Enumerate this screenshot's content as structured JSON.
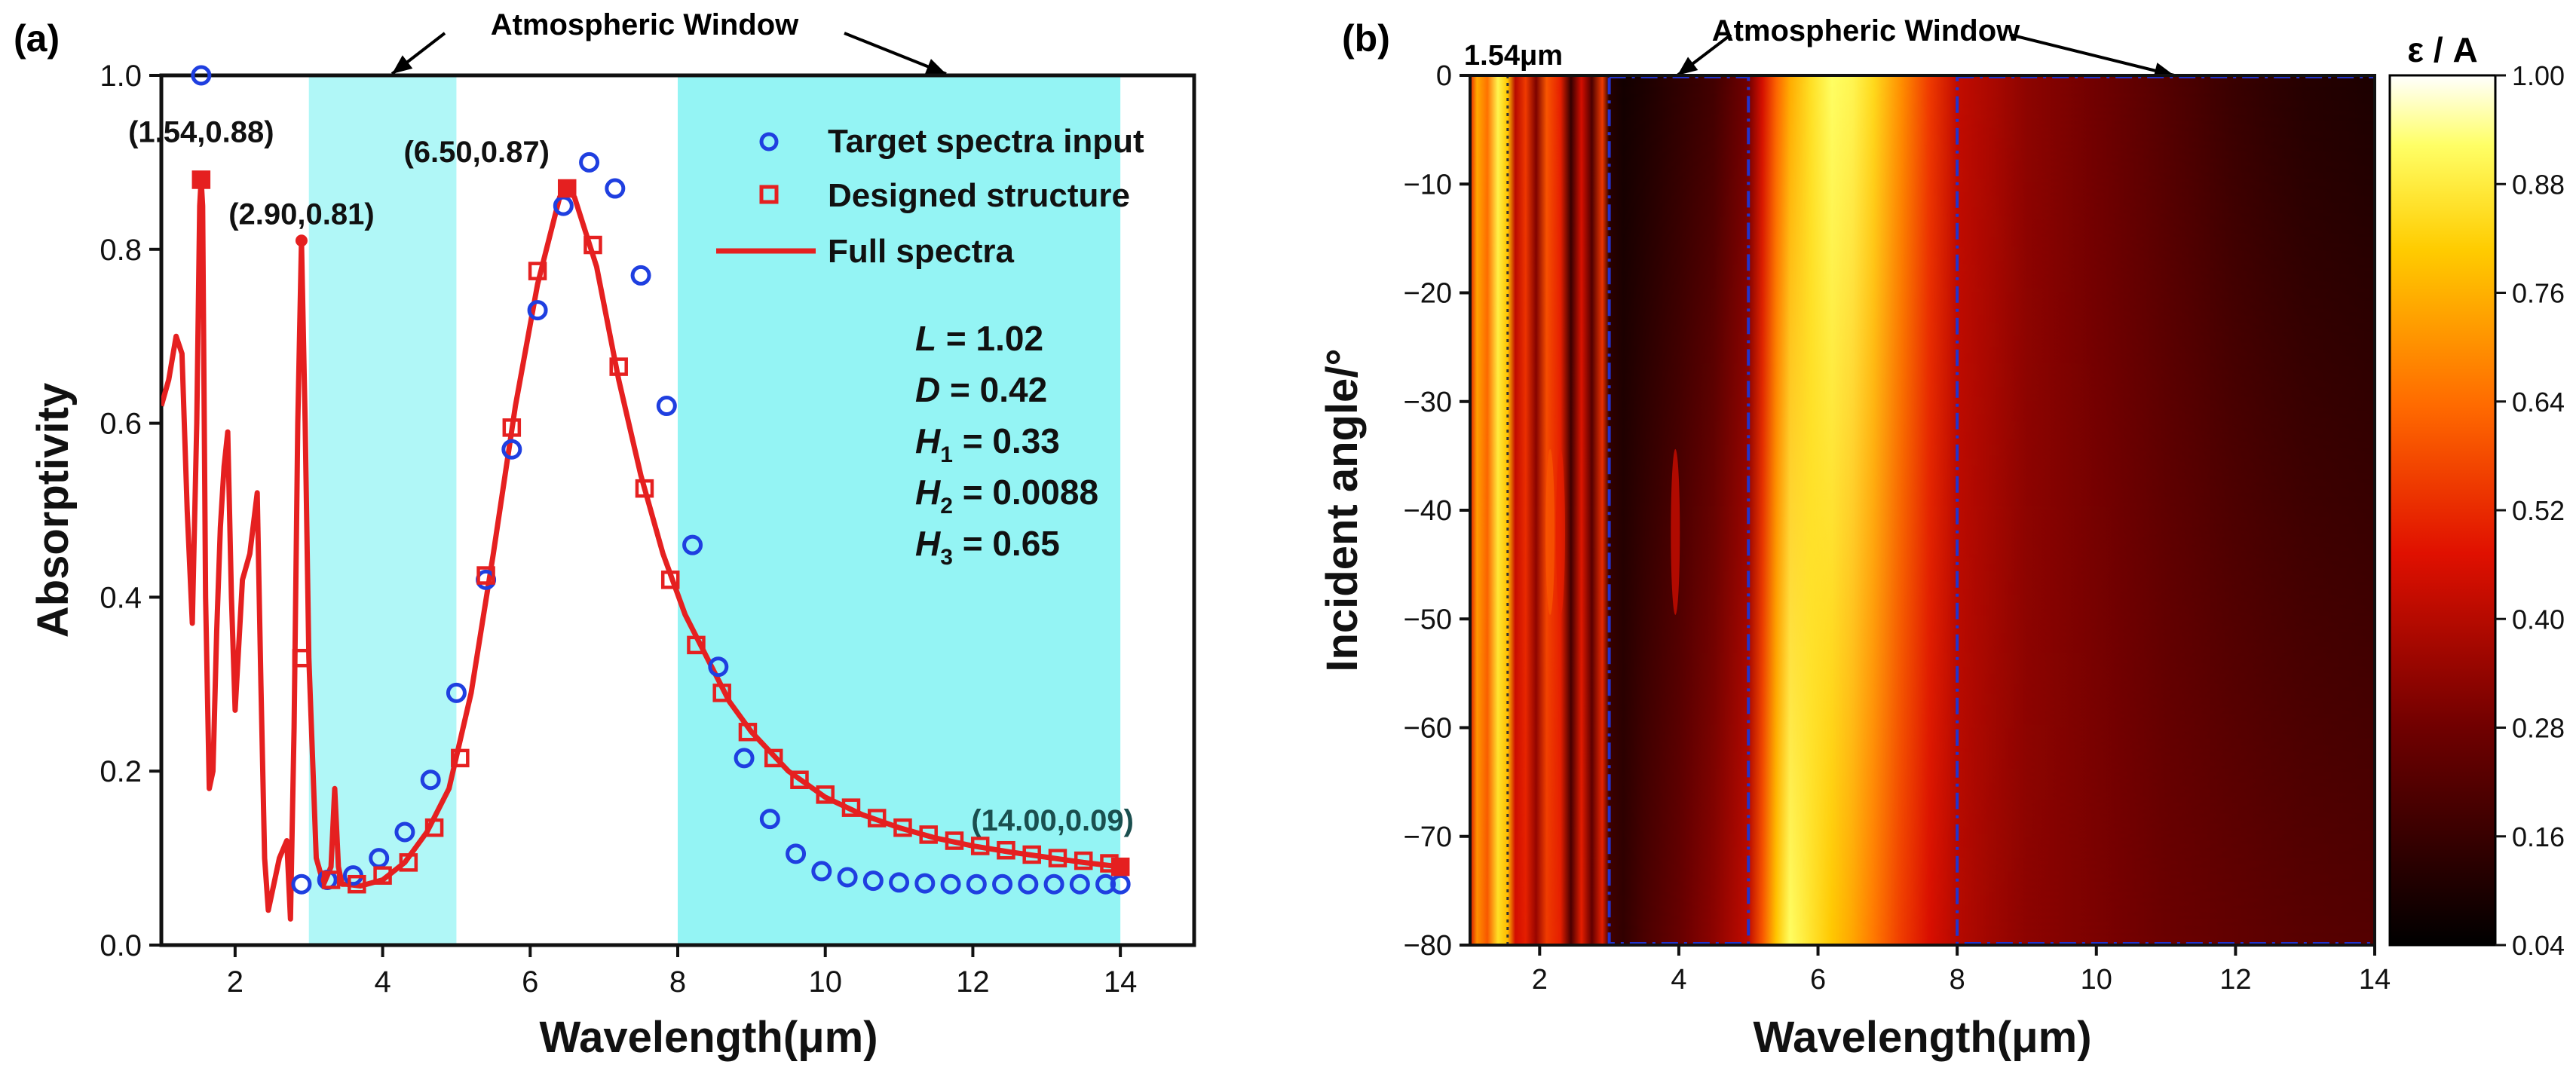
{
  "chart_data": [
    {
      "type": "line",
      "panel_label": "(a)",
      "title": "",
      "xlabel": "Wavelength(μm)",
      "ylabel": "Absorptivity",
      "xlim": [
        1,
        15
      ],
      "ylim": [
        0,
        1.0
      ],
      "xticks": [
        2,
        4,
        6,
        8,
        10,
        12,
        14
      ],
      "yticks": [
        0.0,
        0.2,
        0.4,
        0.6,
        0.8,
        1.0
      ],
      "shaded_regions": [
        [
          3,
          5
        ],
        [
          8,
          14
        ]
      ],
      "shade_color": "#8ef3f3",
      "atm_window_label": "Atmospheric Window",
      "legend": {
        "position": "top-right",
        "target": "Target spectra input",
        "designed": "Designed structure",
        "full": "Full spectra"
      },
      "params": [
        {
          "name": "L",
          "sub": "",
          "value": "= 1.02"
        },
        {
          "name": "D",
          "sub": "",
          "value": "= 0.42"
        },
        {
          "name": "H",
          "sub": "1",
          "value": "= 0.33"
        },
        {
          "name": "H",
          "sub": "2",
          "value": "= 0.0088"
        },
        {
          "name": "H",
          "sub": "3",
          "value": "= 0.65"
        }
      ],
      "annotations": [
        {
          "text": "(1.54,0.88)",
          "x": 1.54,
          "y": 0.88,
          "color": "#111111"
        },
        {
          "text": "(2.90,0.81)",
          "x": 2.9,
          "y": 0.81,
          "color": "#111111"
        },
        {
          "text": "(6.50,0.87)",
          "x": 6.5,
          "y": 0.87,
          "color": "#111111"
        },
        {
          "text": "(14.00,0.09)",
          "x": 14.0,
          "y": 0.09,
          "color": "#1a4f4f"
        }
      ],
      "series": [
        {
          "name": "Target spectra input",
          "marker": "circle",
          "x": [
            1.54,
            2.9,
            3.25,
            3.6,
            3.95,
            4.3,
            4.65,
            5.0,
            5.4,
            5.75,
            6.1,
            6.45,
            6.8,
            7.15,
            7.5,
            7.85,
            8.2,
            8.55,
            8.9,
            9.25,
            9.6,
            9.95,
            10.3,
            10.65,
            11.0,
            11.35,
            11.7,
            12.05,
            12.4,
            12.75,
            13.1,
            13.45,
            13.8,
            14.0
          ],
          "y": [
            1.0,
            0.07,
            0.075,
            0.08,
            0.1,
            0.13,
            0.19,
            0.29,
            0.42,
            0.57,
            0.73,
            0.85,
            0.9,
            0.87,
            0.77,
            0.62,
            0.46,
            0.32,
            0.215,
            0.145,
            0.105,
            0.085,
            0.078,
            0.074,
            0.072,
            0.071,
            0.07,
            0.07,
            0.07,
            0.07,
            0.07,
            0.07,
            0.07,
            0.07
          ]
        },
        {
          "name": "Designed structure",
          "marker": "square",
          "x": [
            1.54,
            2.9,
            3.3,
            3.65,
            4.0,
            4.35,
            4.7,
            5.05,
            5.4,
            5.75,
            6.1,
            6.5,
            6.85,
            7.2,
            7.55,
            7.9,
            8.25,
            8.6,
            8.95,
            9.3,
            9.65,
            10.0,
            10.35,
            10.7,
            11.05,
            11.4,
            11.75,
            12.1,
            12.45,
            12.8,
            13.15,
            13.5,
            13.85,
            14.0
          ],
          "y": [
            0.88,
            0.33,
            0.075,
            0.07,
            0.08,
            0.095,
            0.135,
            0.215,
            0.425,
            0.595,
            0.775,
            0.87,
            0.805,
            0.665,
            0.525,
            0.42,
            0.345,
            0.29,
            0.245,
            0.215,
            0.19,
            0.173,
            0.158,
            0.146,
            0.135,
            0.127,
            0.12,
            0.114,
            0.109,
            0.104,
            0.1,
            0.097,
            0.094,
            0.09
          ]
        },
        {
          "name": "Full spectra",
          "marker": "none",
          "x": [
            1.0,
            1.1,
            1.2,
            1.28,
            1.35,
            1.42,
            1.48,
            1.52,
            1.54,
            1.56,
            1.6,
            1.65,
            1.7,
            1.75,
            1.8,
            1.85,
            1.9,
            1.95,
            2.0,
            2.1,
            2.2,
            2.3,
            2.35,
            2.4,
            2.45,
            2.5,
            2.6,
            2.7,
            2.75,
            2.8,
            2.85,
            2.9,
            2.95,
            3.0,
            3.1,
            3.2,
            3.3,
            3.35,
            3.4,
            3.45,
            3.5,
            3.7,
            4.0,
            4.3,
            4.6,
            4.9,
            5.2,
            5.5,
            5.8,
            6.1,
            6.4,
            6.5,
            6.6,
            6.9,
            7.2,
            7.5,
            7.8,
            8.1,
            8.4,
            8.7,
            9.0,
            9.5,
            10.0,
            10.5,
            11.0,
            11.5,
            12.0,
            12.5,
            13.0,
            13.5,
            14.0
          ],
          "y": [
            0.62,
            0.65,
            0.7,
            0.68,
            0.5,
            0.37,
            0.6,
            0.85,
            0.88,
            0.85,
            0.4,
            0.18,
            0.2,
            0.36,
            0.48,
            0.55,
            0.59,
            0.4,
            0.27,
            0.42,
            0.45,
            0.52,
            0.3,
            0.1,
            0.04,
            0.06,
            0.1,
            0.12,
            0.03,
            0.25,
            0.6,
            0.81,
            0.6,
            0.33,
            0.1,
            0.07,
            0.09,
            0.18,
            0.09,
            0.07,
            0.07,
            0.068,
            0.075,
            0.095,
            0.13,
            0.18,
            0.29,
            0.45,
            0.62,
            0.76,
            0.86,
            0.87,
            0.86,
            0.78,
            0.65,
            0.54,
            0.45,
            0.38,
            0.33,
            0.28,
            0.245,
            0.2,
            0.17,
            0.15,
            0.135,
            0.123,
            0.114,
            0.107,
            0.101,
            0.095,
            0.09
          ]
        }
      ]
    },
    {
      "type": "heatmap",
      "panel_label": "(b)",
      "xlabel": "Wavelength(μm)",
      "ylabel": "Incident angle/°",
      "xlim": [
        1,
        14
      ],
      "ylim": [
        -80,
        0
      ],
      "xticks": [
        2,
        4,
        6,
        8,
        10,
        12,
        14
      ],
      "yticks": [
        0,
        -10,
        -20,
        -30,
        -40,
        -50,
        -60,
        -70,
        -80
      ],
      "atm_window_label": "Atmospheric Window",
      "marker_label": "1.54μm",
      "marker_x": 1.54,
      "window_boxes": [
        [
          3,
          5
        ],
        [
          8,
          14
        ]
      ],
      "box_color": "#2233cc",
      "colorbar": {
        "title": "ε / A",
        "ticks": [
          1.0,
          0.88,
          0.76,
          0.64,
          0.52,
          0.4,
          0.28,
          0.16,
          0.04
        ],
        "tick_labels": [
          "1.00",
          "0.88",
          "0.76",
          "0.64",
          "0.52",
          "0.40",
          "0.28",
          "0.16",
          "0.04"
        ],
        "range": [
          0.04,
          1.0
        ]
      },
      "column_profile": {
        "x": [
          1.0,
          1.1,
          1.25,
          1.4,
          1.54,
          1.65,
          1.8,
          1.95,
          2.1,
          2.3,
          2.45,
          2.6,
          2.75,
          2.9,
          3.0,
          3.2,
          3.5,
          4.0,
          4.5,
          5.0,
          5.2,
          5.4,
          5.6,
          5.9,
          6.2,
          6.5,
          6.8,
          7.2,
          7.6,
          8.0,
          8.5,
          9.0,
          10.0,
          11.0,
          12.0,
          13.0,
          14.0
        ],
        "value_top": [
          0.5,
          0.75,
          0.65,
          0.9,
          0.8,
          0.4,
          0.55,
          0.3,
          0.6,
          0.5,
          0.15,
          0.45,
          0.2,
          0.55,
          0.12,
          0.08,
          0.1,
          0.14,
          0.18,
          0.28,
          0.45,
          0.62,
          0.75,
          0.85,
          0.92,
          0.9,
          0.84,
          0.7,
          0.55,
          0.42,
          0.38,
          0.33,
          0.28,
          0.22,
          0.16,
          0.12,
          0.1
        ],
        "value_bottom": [
          0.45,
          0.7,
          0.6,
          0.85,
          0.78,
          0.45,
          0.5,
          0.35,
          0.55,
          0.5,
          0.2,
          0.5,
          0.25,
          0.5,
          0.18,
          0.15,
          0.2,
          0.26,
          0.33,
          0.42,
          0.6,
          0.8,
          0.92,
          0.86,
          0.8,
          0.74,
          0.66,
          0.55,
          0.46,
          0.4,
          0.36,
          0.33,
          0.3,
          0.27,
          0.25,
          0.23,
          0.22
        ]
      }
    }
  ]
}
